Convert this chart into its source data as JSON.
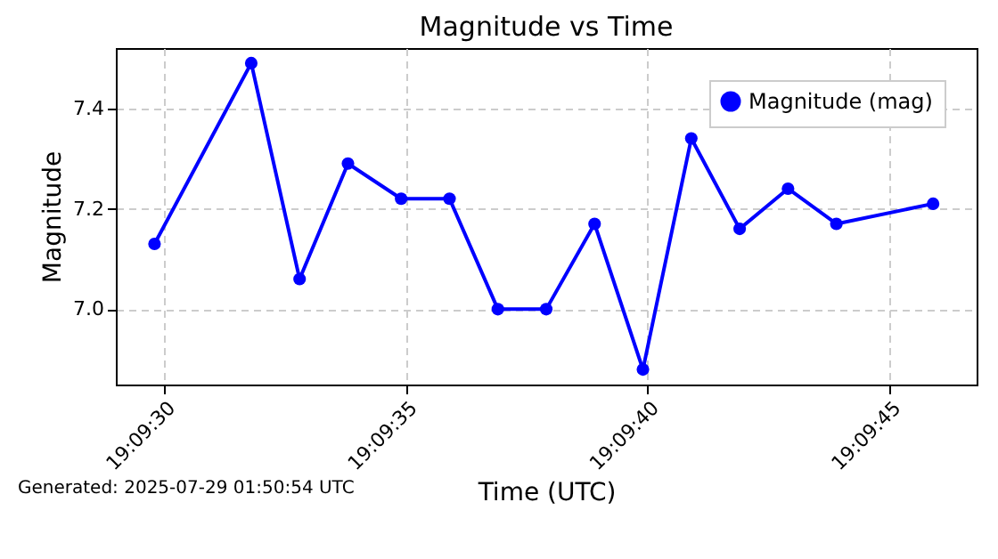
{
  "chart_data": {
    "type": "line",
    "title": "Magnitude vs Time",
    "xlabel": "Time (UTC)",
    "ylabel": "Magnitude",
    "x": [
      "2025-07-29T19:09:29.8",
      "2025-07-29T19:09:31.8",
      "2025-07-29T19:09:32.8",
      "2025-07-29T19:09:33.8",
      "2025-07-29T19:09:34.9",
      "2025-07-29T19:09:35.9",
      "2025-07-29T19:09:36.9",
      "2025-07-29T19:09:37.9",
      "2025-07-29T19:09:38.9",
      "2025-07-29T19:09:39.9",
      "2025-07-29T19:09:40.9",
      "2025-07-29T19:09:41.9",
      "2025-07-29T19:09:42.9",
      "2025-07-29T19:09:43.9",
      "2025-07-29T19:09:45.9"
    ],
    "series": [
      {
        "name": "Magnitude (mag)",
        "color": "#0000ff",
        "values": [
          7.13,
          7.49,
          7.06,
          7.29,
          7.22,
          7.22,
          7.0,
          7.0,
          7.17,
          6.88,
          7.34,
          7.16,
          7.24,
          7.17,
          7.21
        ]
      }
    ],
    "xlim": [
      "2025-07-29T19:09:29.0",
      "2025-07-29T19:09:46.8"
    ],
    "xticks": [
      {
        "value": "2025-07-29T19:09:30",
        "label": "19:09:30"
      },
      {
        "value": "2025-07-29T19:09:35",
        "label": "19:09:35"
      },
      {
        "value": "2025-07-29T19:09:40",
        "label": "19:09:40"
      },
      {
        "value": "2025-07-29T19:09:45",
        "label": "19:09:45"
      }
    ],
    "ylim": [
      6.85,
      7.52
    ],
    "yticks": [
      {
        "value": 7.0,
        "label": "7.0"
      },
      {
        "value": 7.2,
        "label": "7.2"
      },
      {
        "value": 7.4,
        "label": "7.4"
      }
    ],
    "grid": true,
    "legend": "top right",
    "marker": "circle",
    "line_style": "solid",
    "annotations": [
      "Generated: 2025-07-29 01:50:54 UTC"
    ]
  }
}
